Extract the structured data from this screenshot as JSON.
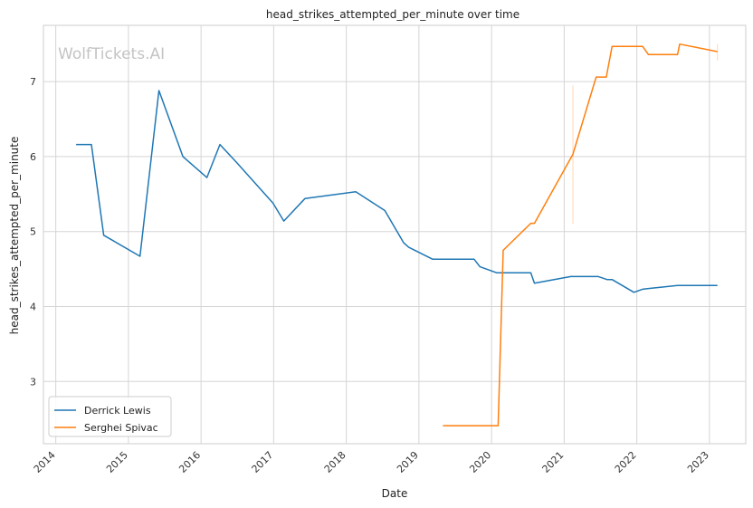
{
  "chart_data": {
    "type": "line",
    "title": "head_strikes_attempted_per_minute over time",
    "xlabel": "Date",
    "ylabel": "head_strikes_attempted_per_minute",
    "watermark": "WolfTickets.AI",
    "grid": true,
    "legend_placement": "lower-left",
    "xlim": [
      2013.83,
      2023.5
    ],
    "ylim": [
      2.17,
      7.75
    ],
    "x_ticks": [
      2014,
      2015,
      2016,
      2017,
      2018,
      2019,
      2020,
      2021,
      2022,
      2023
    ],
    "x_tick_labels": [
      "2014",
      "2015",
      "2016",
      "2017",
      "2018",
      "2019",
      "2020",
      "2021",
      "2022",
      "2023"
    ],
    "y_ticks": [
      3,
      4,
      5,
      6,
      7
    ],
    "y_tick_labels": [
      "3",
      "4",
      "5",
      "6",
      "7"
    ],
    "series": [
      {
        "name": "Derrick Lewis",
        "color": "#1f77b4",
        "x": [
          2014.28,
          2014.49,
          2014.66,
          2015.16,
          2015.42,
          2015.75,
          2016.08,
          2016.26,
          2016.49,
          2016.99,
          2017.14,
          2017.43,
          2018.13,
          2018.53,
          2018.79,
          2018.86,
          2019.19,
          2019.76,
          2019.84,
          2020.07,
          2020.54,
          2020.59,
          2021.09,
          2021.47,
          2021.59,
          2021.66,
          2021.96,
          2022.08,
          2022.16,
          2022.56,
          2023.11
        ],
        "y": [
          6.16,
          6.16,
          4.95,
          4.67,
          6.88,
          6.0,
          5.72,
          6.16,
          5.92,
          5.38,
          5.14,
          5.44,
          5.53,
          5.28,
          4.85,
          4.79,
          4.63,
          4.63,
          4.53,
          4.45,
          4.45,
          4.31,
          4.4,
          4.4,
          4.36,
          4.36,
          4.19,
          4.23,
          4.24,
          4.28,
          4.28
        ]
      },
      {
        "name": "Serghei Spivac",
        "color": "#ff7f0e",
        "x": [
          2019.33,
          2019.83,
          2020.09,
          2020.16,
          2020.54,
          2020.59,
          2021.12,
          2021.44,
          2021.58,
          2021.66,
          2022.08,
          2022.16,
          2022.56,
          2022.59,
          2023.11
        ],
        "y": [
          2.41,
          2.41,
          2.41,
          4.75,
          5.11,
          5.11,
          6.03,
          7.06,
          7.06,
          7.47,
          7.47,
          7.36,
          7.36,
          7.5,
          7.4
        ]
      }
    ]
  }
}
